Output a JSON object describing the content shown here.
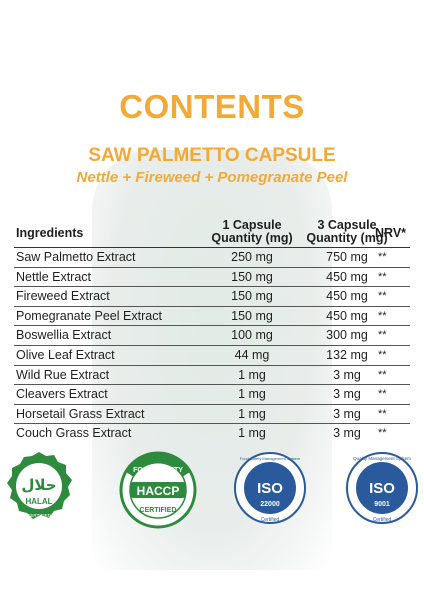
{
  "title": "CONTENTS",
  "subtitle": "SAW PALMETTO CAPSULE",
  "subtitle2": "Nettle + Fireweed + Pomegranate Peel",
  "table": {
    "headers": {
      "ingredients": "Ingredients",
      "one_capsule": "1 Capsule",
      "one_capsule_unit": "Quantity (mg)",
      "three_capsule": "3 Capsule",
      "three_capsule_unit": "Quantity (mg)",
      "nrv": "NRV*"
    },
    "rows": [
      {
        "name": "Saw Palmetto Extract",
        "one": "250 mg",
        "three": "750 mg",
        "nrv": "**"
      },
      {
        "name": "Nettle Extract",
        "one": "150 mg",
        "three": "450 mg",
        "nrv": "**"
      },
      {
        "name": "Fireweed Extract",
        "one": "150 mg",
        "three": "450 mg",
        "nrv": "**"
      },
      {
        "name": "Pomegranate Peel Extract",
        "one": "150 mg",
        "three": "450 mg",
        "nrv": "**"
      },
      {
        "name": "Boswellia Extract",
        "one": "100 mg",
        "three": "300 mg",
        "nrv": "**"
      },
      {
        "name": "Olive Leaf Extract",
        "one": "44 mg",
        "three": "132 mg",
        "nrv": "**"
      },
      {
        "name": "Wild Rue Extract",
        "one": "1 mg",
        "three": "3 mg",
        "nrv": "**"
      },
      {
        "name": "Cleavers Extract",
        "one": "1 mg",
        "three": "3 mg",
        "nrv": "**"
      },
      {
        "name": "Horsetail Grass Extract",
        "one": "1 mg",
        "three": "3 mg",
        "nrv": "**"
      },
      {
        "name": "Couch Grass Extract",
        "one": "1 mg",
        "three": "3 mg",
        "nrv": "**"
      }
    ]
  },
  "badges": {
    "halal": {
      "arabic": "حلال",
      "label": "HALAL",
      "ring": "CERTIFIED",
      "color": "#2e8b3e"
    },
    "haccp": {
      "top": "FOOD SAFETY",
      "label": "HACCP",
      "bottom": "CERTIFIED",
      "color": "#2e8b3e"
    },
    "iso22000": {
      "top": "Food Safety Management System",
      "label": "ISO",
      "number": "22000",
      "bottom": "Certified",
      "color": "#2a5a9c"
    },
    "iso9001": {
      "top": "Quality Management System",
      "label": "ISO",
      "number": "9001",
      "bottom": "Certified",
      "color": "#2a5a9c"
    }
  },
  "colors": {
    "accent": "#f2a936",
    "green": "#2e8b3e",
    "blue": "#2a5a9c"
  }
}
